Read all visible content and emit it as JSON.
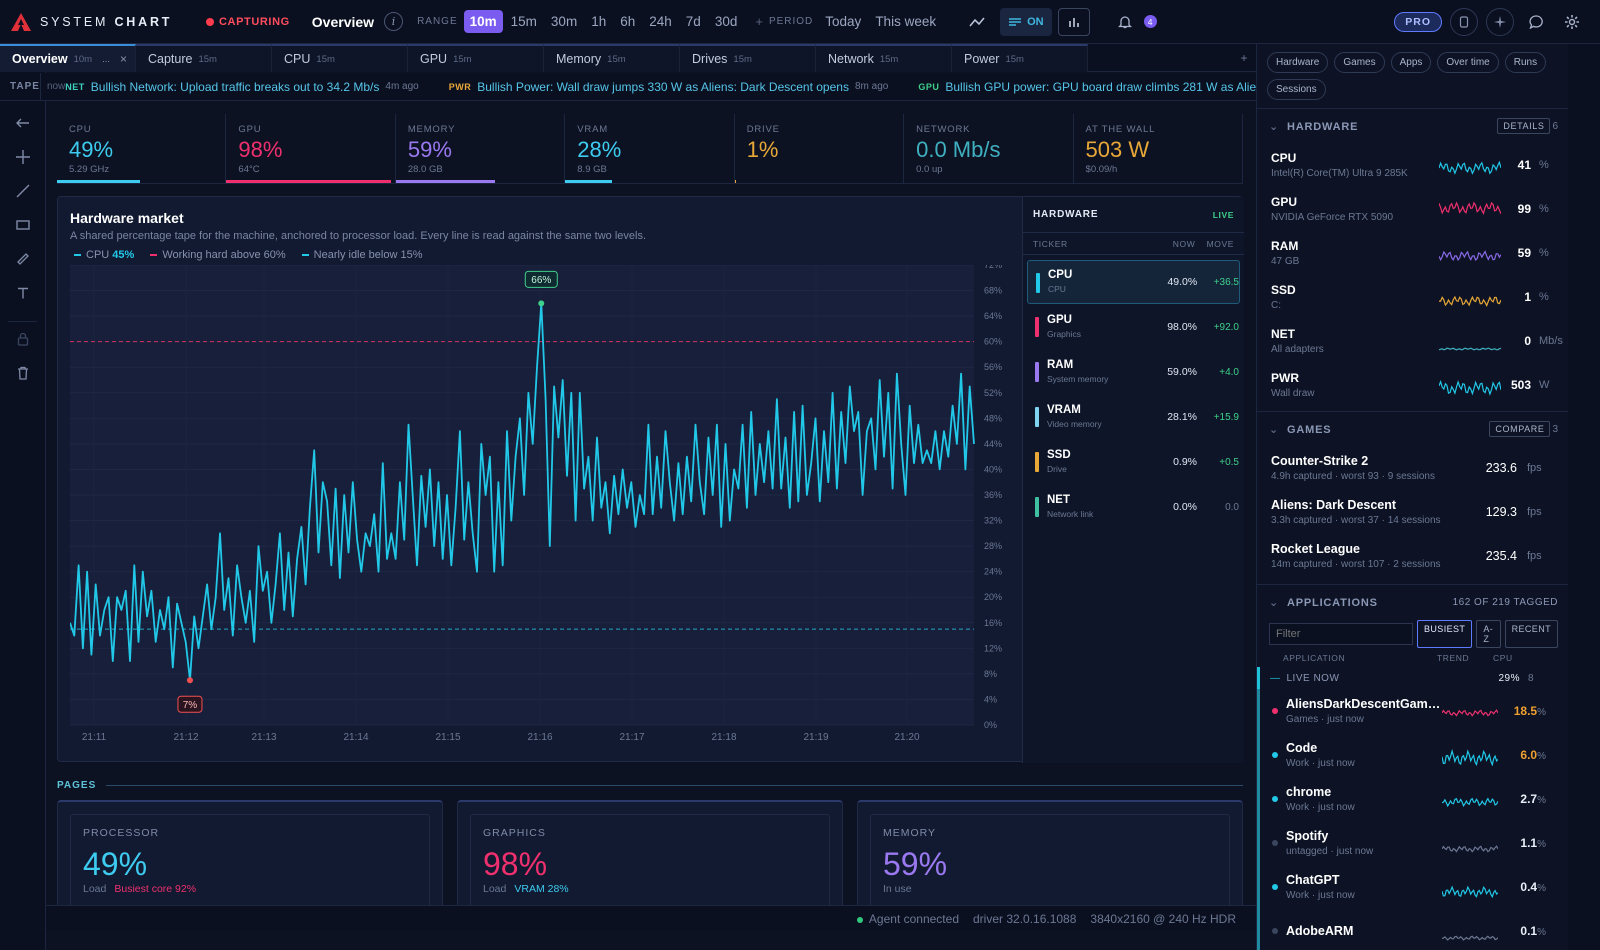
{
  "app": {
    "brand_light": "SYSTEM",
    "brand_bold": "CHART",
    "capturing": "CAPTURING",
    "view_title": "Overview"
  },
  "toolbar": {
    "range_label": "RANGE",
    "ranges": [
      "10m",
      "15m",
      "30m",
      "1h",
      "6h",
      "24h",
      "7d",
      "30d"
    ],
    "active_range": "10m",
    "plus": "+",
    "period_label": "PERIOD",
    "periods": [
      "Today",
      "This week"
    ],
    "on_label": "ON",
    "pro_label": "PRO",
    "notif_count": "4"
  },
  "tabs": [
    {
      "name": "Overview",
      "range": "10m",
      "extra": "...",
      "close": "×"
    },
    {
      "name": "Capture",
      "range": "15m"
    },
    {
      "name": "CPU",
      "range": "15m"
    },
    {
      "name": "GPU",
      "range": "15m"
    },
    {
      "name": "Memory",
      "range": "15m"
    },
    {
      "name": "Drives",
      "range": "15m"
    },
    {
      "name": "Network",
      "range": "15m"
    },
    {
      "name": "Power",
      "range": "15m"
    }
  ],
  "tab_plus": "+",
  "tape": {
    "label": "TAPE",
    "now": "now",
    "items": [
      {
        "tag": "NET",
        "text": "Bullish Network: Upload traffic breaks out to 34.2 Mb/s",
        "ago": "4m ago",
        "color": "#3fd0c0"
      },
      {
        "tag": "PWR",
        "text": "Bullish Power: Wall draw jumps 330 W as Aliens: Dark Descent opens",
        "ago": "8m ago",
        "color": "#e8a838"
      },
      {
        "tag": "GPU",
        "text": "Bullish GPU power: GPU board draw climbs 281 W as Aliens: Dark Descent opens",
        "ago": "",
        "color": "#3fd08a"
      }
    ]
  },
  "stats": [
    {
      "label": "CPU",
      "value": "49%",
      "sub": "5.29 GHz",
      "color": "#3ecbf0",
      "fill": 0.49
    },
    {
      "label": "GPU",
      "value": "98%",
      "sub": "64°C",
      "color": "#f0306e",
      "fill": 0.98
    },
    {
      "label": "MEMORY",
      "value": "59%",
      "sub": "28.0 GB",
      "color": "#9a78f0",
      "fill": 0.59
    },
    {
      "label": "VRAM",
      "value": "28%",
      "sub": "8.9 GB",
      "color": "#3ecbf0",
      "fill": 0.28
    },
    {
      "label": "DRIVE",
      "value": "1%",
      "sub": "",
      "color": "#e8a838",
      "fill": 0.01
    },
    {
      "label": "NETWORK",
      "value": "0.0 Mb/s",
      "sub": "0.0 up",
      "color": "#3fb0c0",
      "fill": 0.0
    },
    {
      "label": "AT THE WALL",
      "value": "503 W",
      "sub": "$0.09/h",
      "color": "#e8a838",
      "fill": 0.0
    }
  ],
  "market": {
    "title": "Hardware market",
    "subtitle": "A shared percentage tape for the machine, anchored to processor load. Every line is read against the same two levels.",
    "legend_cpu": "CPU",
    "legend_cpu_val": "45%",
    "legend_hi": "Working hard above 60%",
    "legend_lo": "Nearly idle below 15%"
  },
  "chart_data": {
    "type": "line",
    "title": "Hardware market",
    "ylim": [
      0,
      72
    ],
    "y_ticks": [
      "72%",
      "68%",
      "64%",
      "60%",
      "56%",
      "52%",
      "48%",
      "44%",
      "40%",
      "36%",
      "32%",
      "28%",
      "24%",
      "20%",
      "16%",
      "12%",
      "8%",
      "4%",
      "0%"
    ],
    "x_ticks": [
      "21:11",
      "21:12",
      "21:13",
      "21:14",
      "21:15",
      "21:16",
      "21:17",
      "21:18",
      "21:19",
      "21:20"
    ],
    "thresholds": [
      60,
      15
    ],
    "peak_label": "66%",
    "low_label": "7%",
    "series": [
      {
        "name": "CPU",
        "color": "#22c8e8",
        "values": [
          16,
          14,
          25,
          12,
          24,
          11,
          22,
          14,
          18,
          20,
          10,
          20,
          18,
          21,
          10,
          25,
          13,
          24,
          17,
          21,
          13,
          18,
          15,
          20,
          9,
          19,
          16,
          13,
          7,
          17,
          12,
          17,
          22,
          15,
          20,
          30,
          18,
          23,
          14,
          25,
          20,
          16,
          21,
          13,
          28,
          21,
          24,
          16,
          22,
          30,
          18,
          27,
          17,
          26,
          31,
          22,
          34,
          43,
          27,
          38,
          35,
          25,
          37,
          23,
          36,
          27,
          38,
          29,
          24,
          30,
          28,
          33,
          24,
          41,
          26,
          30,
          26,
          38,
          29,
          47,
          36,
          25,
          39,
          31,
          40,
          28,
          38,
          26,
          36,
          25,
          34,
          46,
          29,
          38,
          30,
          24,
          44,
          36,
          42,
          24,
          38,
          25,
          46,
          32,
          42,
          48,
          36,
          52,
          44,
          56,
          66,
          51,
          28,
          53,
          45,
          54,
          39,
          52,
          32,
          52,
          37,
          42,
          32,
          45,
          34,
          38,
          30,
          39,
          33,
          40,
          34,
          38,
          31,
          36,
          33,
          47,
          33,
          42,
          34,
          46,
          38,
          32,
          41,
          33,
          42,
          35,
          47,
          38,
          33,
          45,
          36,
          47,
          31,
          44,
          32,
          40,
          37,
          47,
          34,
          49,
          36,
          44,
          38,
          46,
          37,
          51,
          37,
          45,
          34,
          49,
          35,
          50,
          36,
          41,
          48,
          35,
          46,
          38,
          52,
          37,
          49,
          41,
          53,
          46,
          49,
          36,
          46,
          48,
          40,
          54,
          42,
          52,
          37,
          55,
          44,
          36,
          50,
          41,
          47,
          41,
          43,
          41,
          46,
          40,
          46,
          42,
          50,
          44,
          55,
          40,
          53,
          44
        ]
      }
    ]
  },
  "ticker": {
    "title": "HARDWARE",
    "live": "LIVE",
    "col_ticker": "TICKER",
    "col_now": "NOW",
    "col_move": "MOVE",
    "rows": [
      {
        "sym": "CPU",
        "desc": "CPU",
        "now": "49.0%",
        "move": "+36.5",
        "color": "#22c8e8"
      },
      {
        "sym": "GPU",
        "desc": "Graphics",
        "now": "98.0%",
        "move": "+92.0",
        "color": "#f0306e"
      },
      {
        "sym": "RAM",
        "desc": "System memory",
        "now": "59.0%",
        "move": "+4.0",
        "color": "#9a78f0"
      },
      {
        "sym": "VRAM",
        "desc": "Video memory",
        "now": "28.1%",
        "move": "+15.9",
        "color": "#7fd4f0"
      },
      {
        "sym": "SSD",
        "desc": "Drive",
        "now": "0.9%",
        "move": "+0.5",
        "color": "#e8a838"
      },
      {
        "sym": "NET",
        "desc": "Network link",
        "now": "0.0%",
        "move": "0.0",
        "color": "#3fc0a0"
      }
    ]
  },
  "pages": {
    "label": "PAGES",
    "cards": [
      {
        "label": "PROCESSOR",
        "value": "49%",
        "sub": "Load",
        "extra": "Busiest core 92%",
        "color": "#3ecbf0",
        "extra_color": "#f0306e"
      },
      {
        "label": "GRAPHICS",
        "value": "98%",
        "sub": "Load",
        "extra": "VRAM 28%",
        "color": "#f0306e",
        "extra_color": "#3ecbf0"
      },
      {
        "label": "MEMORY",
        "value": "59%",
        "sub": "In use",
        "extra": "",
        "color": "#9a78f0",
        "extra_color": "#9a78f0"
      }
    ]
  },
  "status": {
    "agent": "Agent connected",
    "driver": "driver 32.0.16.1088",
    "display": "3840x2160 @ 240 Hz HDR"
  },
  "sidebar": {
    "chips": [
      "Hardware",
      "Games",
      "Apps",
      "Over time",
      "Runs",
      "Sessions"
    ],
    "hardware_title": "HARDWARE",
    "details": "DETAILS",
    "hardware_count": "6",
    "hardware": [
      {
        "name": "CPU",
        "sub": "Intel(R) Core(TM) Ultra 9 285K",
        "val": "41",
        "unit": "%",
        "color": "#22c8e8"
      },
      {
        "name": "GPU",
        "sub": "NVIDIA GeForce RTX 5090",
        "val": "99",
        "unit": "%",
        "color": "#f0306e"
      },
      {
        "name": "RAM",
        "sub": "47 GB",
        "val": "59",
        "unit": "%",
        "color": "#8a6ae8"
      },
      {
        "name": "SSD",
        "sub": "C:",
        "val": "1",
        "unit": "%",
        "color": "#e8a838"
      },
      {
        "name": "NET",
        "sub": "All adapters",
        "val": "0",
        "unit": "Mb/s",
        "color": "#3fb0c0"
      },
      {
        "name": "PWR",
        "sub": "Wall draw",
        "val": "503",
        "unit": "W",
        "color": "#22c8e8"
      }
    ],
    "games_title": "GAMES",
    "compare": "COMPARE",
    "games_count": "3",
    "games": [
      {
        "name": "Counter-Strike 2",
        "sub": "4.9h captured · worst 93 · 9 sessions",
        "fps": "233.6",
        "unit": "fps"
      },
      {
        "name": "Aliens: Dark Descent",
        "sub": "3.3h captured · worst 37 · 14 sessions",
        "fps": "129.3",
        "unit": "fps"
      },
      {
        "name": "Rocket League",
        "sub": "14m captured · worst 107 · 2 sessions",
        "fps": "235.4",
        "unit": "fps"
      }
    ],
    "apps_title": "APPLICATIONS",
    "apps_count": "162 OF 219 TAGGED",
    "filter_placeholder": "Filter",
    "sorts": [
      "BUSIEST",
      "A-Z",
      "RECENT"
    ],
    "col_app": "APPLICATION",
    "col_trend": "TREND",
    "col_cpu": "CPU",
    "live_now": "LIVE NOW",
    "live_pct": "29%",
    "live_count": "8",
    "apps": [
      {
        "name": "AliensDarkDescentGame...",
        "sub": "Games · just now",
        "pct": "18.5",
        "dot": "#f0306e",
        "color": "#f0306e",
        "pct_color": "#f0a030"
      },
      {
        "name": "Code",
        "sub": "Work · just now",
        "pct": "6.0",
        "dot": "#22c8e8",
        "color": "#22c8e8",
        "pct_color": "#f0a030"
      },
      {
        "name": "chrome",
        "sub": "Work · just now",
        "pct": "2.7",
        "dot": "#22c8e8",
        "color": "#22c8e8",
        "pct_color": "#e9eef8"
      },
      {
        "name": "Spotify",
        "sub": "untagged · just now",
        "pct": "1.1",
        "dot": "#3a4660",
        "color": "#6b7894",
        "pct_color": "#e9eef8"
      },
      {
        "name": "ChatGPT",
        "sub": "Work · just now",
        "pct": "0.4",
        "dot": "#22c8e8",
        "color": "#22c8e8",
        "pct_color": "#e9eef8"
      },
      {
        "name": "AdobeARM",
        "sub": "",
        "pct": "0.1",
        "dot": "#3a4660",
        "color": "#6b7894",
        "pct_color": "#e9eef8"
      }
    ]
  }
}
